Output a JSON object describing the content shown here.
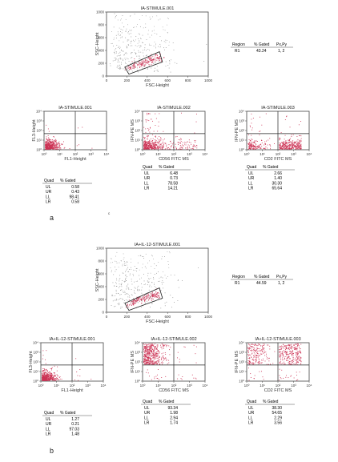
{
  "panel_labels": [
    "a",
    "b"
  ],
  "stray_mark": "c",
  "region_table": {
    "headers": [
      "Region",
      "% Gated",
      "Px,Py"
    ]
  },
  "quad_table": {
    "headers": [
      "Quad",
      "% Gated"
    ],
    "quadrants": [
      "UL",
      "UR",
      "LL",
      "LR"
    ]
  },
  "colors": {
    "dots_red": "#cc3355",
    "dots_grey": "#8a8a8a",
    "frame": "#444444"
  },
  "chart_data": [
    {
      "type": "scatter",
      "panel": "a",
      "title": "IA-STIMULE.001",
      "xlabel": "FSC-Height",
      "ylabel": "SSC-Height",
      "xlim": [
        0,
        1000
      ],
      "ylim": [
        0,
        1000
      ],
      "x_ticks": [
        "0",
        "200",
        "400",
        "600",
        "800",
        "1000"
      ],
      "y_ticks": [
        "0",
        "200",
        "400",
        "600",
        "800",
        "1000"
      ],
      "gate": "R1",
      "region_stats": {
        "region": "R1",
        "gated": "43.24",
        "pxpy": "1, 2"
      }
    },
    {
      "type": "scatter",
      "panel": "a",
      "title": "IA-STIMULE.001",
      "xlabel": "FL1-Height",
      "ylabel": "FL3-Height",
      "log_scale": true,
      "ticks": [
        "10⁰",
        "10¹",
        "10²",
        "10³",
        "10⁴"
      ],
      "quad_stats": [
        {
          "quad": "UL",
          "gated": "0.58"
        },
        {
          "quad": "UR",
          "gated": "0.43"
        },
        {
          "quad": "LL",
          "gated": "98.41"
        },
        {
          "quad": "LR",
          "gated": "0.58"
        }
      ]
    },
    {
      "type": "scatter",
      "panel": "a",
      "title": "IA-STIMULE.002",
      "xlabel": "CD56 FITC MS",
      "ylabel": "IFN-PE MS",
      "log_scale": true,
      "ticks": [
        "10⁰",
        "10¹",
        "10²",
        "10³",
        "10⁴"
      ],
      "quad_stats": [
        {
          "quad": "UL",
          "gated": "6.48"
        },
        {
          "quad": "UR",
          "gated": "0.73"
        },
        {
          "quad": "LL",
          "gated": "78.58"
        },
        {
          "quad": "LR",
          "gated": "14.21"
        }
      ]
    },
    {
      "type": "scatter",
      "panel": "a",
      "title": "IA-STIMULE.003",
      "xlabel": "CD2 FITC MS",
      "ylabel": "IFN-PE MS",
      "log_scale": true,
      "ticks": [
        "10⁰",
        "10¹",
        "10²",
        "10³",
        "10⁴"
      ],
      "quad_stats": [
        {
          "quad": "UL",
          "gated": "2.66"
        },
        {
          "quad": "UR",
          "gated": "1.40"
        },
        {
          "quad": "LL",
          "gated": "30.30"
        },
        {
          "quad": "LR",
          "gated": "65.64"
        }
      ]
    },
    {
      "type": "scatter",
      "panel": "b",
      "title": "IA+IL-12-STIMULE.001",
      "xlabel": "FSC-Height",
      "ylabel": "SSC-Height",
      "xlim": [
        0,
        1000
      ],
      "ylim": [
        0,
        1000
      ],
      "x_ticks": [
        "0",
        "200",
        "400",
        "600",
        "800",
        "1000"
      ],
      "y_ticks": [
        "0",
        "200",
        "400",
        "600",
        "800",
        "1000"
      ],
      "gate": "R1",
      "region_stats": {
        "region": "R1",
        "gated": "44.59",
        "pxpy": "1, 2"
      }
    },
    {
      "type": "scatter",
      "panel": "b",
      "title": "IA+IL-12-STIMULE.001",
      "xlabel": "FL1-Height",
      "ylabel": "FL3-Height",
      "log_scale": true,
      "ticks": [
        "10⁰",
        "10¹",
        "10²",
        "10³",
        "10⁴"
      ],
      "quad_stats": [
        {
          "quad": "UL",
          "gated": "1.27"
        },
        {
          "quad": "UR",
          "gated": "0.21"
        },
        {
          "quad": "LL",
          "gated": "97.03"
        },
        {
          "quad": "LR",
          "gated": "1.48"
        }
      ]
    },
    {
      "type": "scatter",
      "panel": "b",
      "title": "IA+IL-12-STIMULE.002",
      "xlabel": "CD56 FITC MS",
      "ylabel": "IFN-PE MS",
      "log_scale": true,
      "ticks": [
        "10⁰",
        "10¹",
        "10²",
        "10³",
        "10⁴"
      ],
      "quad_stats": [
        {
          "quad": "UL",
          "gated": "93.34"
        },
        {
          "quad": "UR",
          "gated": "1.98"
        },
        {
          "quad": "LL",
          "gated": "2.94"
        },
        {
          "quad": "LR",
          "gated": "1.74"
        }
      ]
    },
    {
      "type": "scatter",
      "panel": "b",
      "title": "IA+IL-12-STIMULE.003",
      "xlabel": "CD2 FITC MS",
      "ylabel": "IFN-PE MS",
      "log_scale": true,
      "ticks": [
        "10⁰",
        "10¹",
        "10²",
        "10³",
        "10⁴"
      ],
      "quad_stats": [
        {
          "quad": "UL",
          "gated": "38.30"
        },
        {
          "quad": "UR",
          "gated": "54.65"
        },
        {
          "quad": "LL",
          "gated": "2.29"
        },
        {
          "quad": "LR",
          "gated": "3.56"
        }
      ]
    }
  ]
}
